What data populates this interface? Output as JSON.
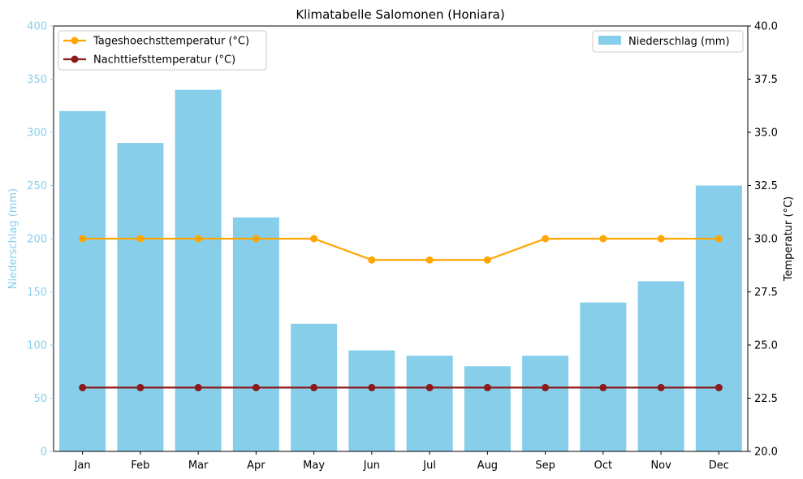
{
  "chart_data": {
    "type": "bar",
    "title": "Klimatabelle Salomonen (Honiara)",
    "categories": [
      "Jan",
      "Feb",
      "Mar",
      "Apr",
      "May",
      "Jun",
      "Jul",
      "Aug",
      "Sep",
      "Oct",
      "Nov",
      "Dec"
    ],
    "left_axis": {
      "label": "Niederschlag (mm)",
      "ylim": [
        0,
        400
      ],
      "ticks": [
        "0",
        "50",
        "100",
        "150",
        "200",
        "250",
        "300",
        "350",
        "400"
      ],
      "color": "#87CEEB"
    },
    "right_axis": {
      "label": "Temperatur (°C)",
      "ylim": [
        20,
        40
      ],
      "ticks": [
        "20.0",
        "22.5",
        "25.0",
        "27.5",
        "30.0",
        "32.5",
        "35.0",
        "37.5",
        "40.0"
      ],
      "color": "#000000"
    },
    "series": [
      {
        "name": "Niederschlag (mm)",
        "type": "bar",
        "axis": "left",
        "color": "#87CEEB",
        "values": [
          320,
          290,
          340,
          220,
          120,
          95,
          90,
          80,
          90,
          140,
          160,
          250
        ]
      },
      {
        "name": "Tageshoechsttemperatur (°C)",
        "type": "line",
        "axis": "right",
        "color": "#FFA500",
        "values": [
          30,
          30,
          30,
          30,
          30,
          29,
          29,
          29,
          30,
          30,
          30,
          30
        ]
      },
      {
        "name": "Nachttiefsttemperatur (°C)",
        "type": "line",
        "axis": "right",
        "color": "#8B1A1A",
        "values": [
          23,
          23,
          23,
          23,
          23,
          23,
          23,
          23,
          23,
          23,
          23,
          23
        ]
      }
    ],
    "legends": [
      {
        "placement": "top-left",
        "entries": [
          "Tageshoechsttemperatur (°C)",
          "Nachttiefsttemperatur (°C)"
        ]
      },
      {
        "placement": "top-right",
        "entries": [
          "Niederschlag (mm)"
        ]
      }
    ],
    "grid": false
  }
}
